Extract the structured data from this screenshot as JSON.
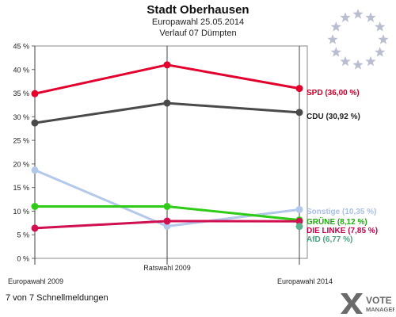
{
  "header": {
    "title": "Stadt Oberhausen",
    "subtitle": "Europawahl 25.05.2014",
    "subtitle2": "Verlauf 07 Dümpten"
  },
  "footer": {
    "text": "7 von 7 Schnellmeldungen",
    "logo_line1": "VOTE",
    "logo_line2": "MANAGER"
  },
  "chart_data": {
    "type": "line",
    "title": "",
    "xlabel": "",
    "ylabel": "",
    "categories": [
      "Europawahl 2009",
      "Ratswahl 2009",
      "Europawahl 2014"
    ],
    "ylim": [
      0,
      45
    ],
    "yticks": [
      0,
      5,
      10,
      15,
      20,
      25,
      30,
      35,
      40,
      45
    ],
    "ytick_labels": [
      "0 %",
      "5 %",
      "10 %",
      "15 %",
      "20 %",
      "25 %",
      "30 %",
      "35 %",
      "40 %",
      "45 %"
    ],
    "grid": false,
    "series": [
      {
        "name": "SPD",
        "label": "SPD (36,00 %)",
        "color": "#e2002d",
        "label_color": "#cc0028",
        "values": [
          34.9,
          41.0,
          36.0
        ]
      },
      {
        "name": "CDU",
        "label": "CDU (30,92 %)",
        "color": "#4a4a4a",
        "label_color": "#222222",
        "values": [
          28.7,
          32.9,
          30.92
        ]
      },
      {
        "name": "Sonstige",
        "label": "Sonstige (10,35 %)",
        "color": "#b4c8ea",
        "label_color": "#a9bfe6",
        "values": [
          18.7,
          6.8,
          10.35
        ]
      },
      {
        "name": "GRÜNE",
        "label": "GRÜNE (8,12 %)",
        "color": "#2ecc17",
        "label_color": "#22aa10",
        "values": [
          11.0,
          11.0,
          8.12
        ]
      },
      {
        "name": "DIE LINKE",
        "label": "DIE LINKE (7,85 %)",
        "color": "#d0104f",
        "label_color": "#c8004a",
        "values": [
          6.4,
          7.9,
          7.85
        ]
      },
      {
        "name": "AfD",
        "label": "AfD (6,77 %)",
        "color": "#5fb38f",
        "label_color": "#4aa080",
        "values": [
          null,
          null,
          6.77
        ]
      }
    ]
  },
  "colors": {
    "eu_star": "#b9bfd0"
  }
}
